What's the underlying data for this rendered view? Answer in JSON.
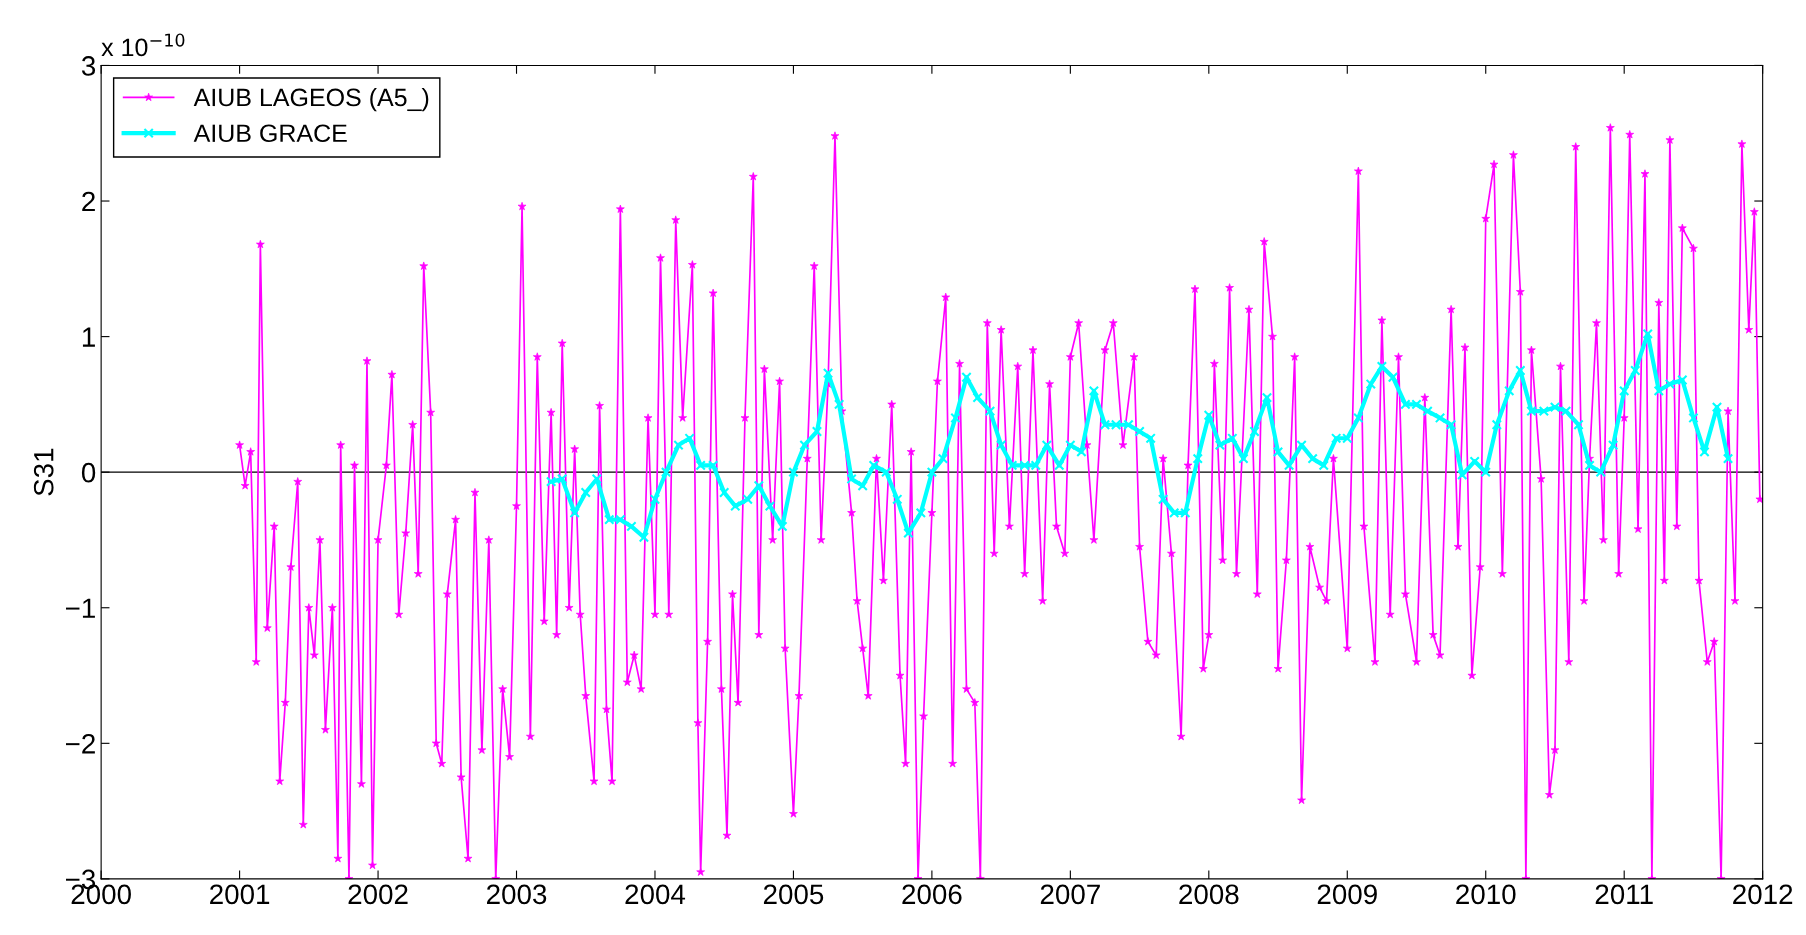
{
  "chart_data": {
    "type": "line",
    "ylabel": "S31",
    "annotations": [
      "x 10$^{−10}$"
    ],
    "xlim": [
      2000,
      2012
    ],
    "xticks": [
      2000,
      2001,
      2002,
      2003,
      2004,
      2005,
      2006,
      2007,
      2008,
      2009,
      2010,
      2011,
      2012
    ],
    "ylim": [
      -3,
      3
    ],
    "yticks": [
      {
        "value": -3,
        "label": "−3"
      },
      {
        "value": -2,
        "label": "−2"
      },
      {
        "value": -1,
        "label": "−1"
      },
      0,
      1,
      2,
      3
    ],
    "grid": false,
    "legend": "top left",
    "ref_lines": [
      {
        "axis": "y",
        "value": 0,
        "color": "#000000"
      }
    ],
    "series": [
      {
        "name": "AIUB LAGEOS (A5_)",
        "color": "#ff00ff",
        "marker": "star",
        "x": [
          2001.0,
          2001.04,
          2001.08,
          2001.12,
          2001.15,
          2001.2,
          2001.25,
          2001.29,
          2001.33,
          2001.37,
          2001.42,
          2001.46,
          2001.5,
          2001.54,
          2001.58,
          2001.62,
          2001.67,
          2001.71,
          2001.73,
          2001.79,
          2001.83,
          2001.88,
          2001.92,
          2001.96,
          2002.0,
          2002.06,
          2002.1,
          2002.15,
          2002.2,
          2002.25,
          2002.29,
          2002.33,
          2002.38,
          2002.42,
          2002.46,
          2002.5,
          2002.56,
          2002.6,
          2002.65,
          2002.7,
          2002.75,
          2002.8,
          2002.85,
          2002.9,
          2002.95,
          2003.0,
          2003.04,
          2003.1,
          2003.15,
          2003.2,
          2003.25,
          2003.29,
          2003.33,
          2003.38,
          2003.42,
          2003.46,
          2003.5,
          2003.56,
          2003.6,
          2003.65,
          2003.69,
          2003.75,
          2003.8,
          2003.85,
          2003.9,
          2003.95,
          2004.0,
          2004.04,
          2004.1,
          2004.15,
          2004.2,
          2004.27,
          2004.31,
          2004.33,
          2004.38,
          2004.42,
          2004.48,
          2004.52,
          2004.56,
          2004.6,
          2004.65,
          2004.71,
          2004.75,
          2004.79,
          2004.85,
          2004.9,
          2004.94,
          2005.0,
          2005.04,
          2005.1,
          2005.15,
          2005.2,
          2005.25,
          2005.3,
          2005.35,
          2005.42,
          2005.46,
          2005.5,
          2005.54,
          2005.6,
          2005.65,
          2005.71,
          2005.77,
          2005.81,
          2005.85,
          2005.9,
          2005.94,
          2006.0,
          2006.04,
          2006.1,
          2006.15,
          2006.2,
          2006.25,
          2006.31,
          2006.35,
          2006.4,
          2006.45,
          2006.5,
          2006.56,
          2006.62,
          2006.67,
          2006.73,
          2006.8,
          2006.85,
          2006.9,
          2006.96,
          2007.0,
          2007.06,
          2007.12,
          2007.17,
          2007.25,
          2007.31,
          2007.38,
          2007.46,
          2007.5,
          2007.56,
          2007.62,
          2007.67,
          2007.73,
          2007.8,
          2007.85,
          2007.9,
          2007.96,
          2008.0,
          2008.04,
          2008.1,
          2008.15,
          2008.2,
          2008.29,
          2008.35,
          2008.4,
          2008.46,
          2008.5,
          2008.56,
          2008.62,
          2008.67,
          2008.73,
          2008.8,
          2008.85,
          2008.9,
          2009.0,
          2009.08,
          2009.12,
          2009.2,
          2009.25,
          2009.31,
          2009.37,
          2009.42,
          2009.5,
          2009.56,
          2009.62,
          2009.67,
          2009.75,
          2009.8,
          2009.85,
          2009.9,
          2009.96,
          2010.0,
          2010.06,
          2010.12,
          2010.2,
          2010.25,
          2010.29,
          2010.33,
          2010.4,
          2010.46,
          2010.5,
          2010.54,
          2010.6,
          2010.65,
          2010.71,
          2010.75,
          2010.8,
          2010.85,
          2010.9,
          2010.96,
          2011.0,
          2011.04,
          2011.1,
          2011.15,
          2011.2,
          2011.25,
          2011.29,
          2011.33,
          2011.38,
          2011.42,
          2011.5,
          2011.54,
          2011.6,
          2011.65,
          2011.7,
          2011.75,
          2011.8,
          2011.85,
          2011.9,
          2011.94,
          2011.98
        ],
        "values": [
          0.2,
          -0.1,
          0.15,
          -1.4,
          1.68,
          -1.15,
          -0.4,
          -2.28,
          -1.7,
          -0.7,
          -0.07,
          -2.6,
          -1.0,
          -1.35,
          -0.5,
          -1.9,
          -1.0,
          -2.85,
          0.2,
          -3.0,
          0.05,
          -2.3,
          0.82,
          -2.9,
          -0.5,
          0.05,
          0.72,
          -1.05,
          -0.45,
          0.35,
          -0.75,
          1.52,
          0.44,
          -2.0,
          -2.15,
          -0.9,
          -0.35,
          -2.25,
          -2.85,
          -0.15,
          -2.05,
          -0.5,
          -3.0,
          -1.6,
          -2.1,
          -0.25,
          1.96,
          -1.95,
          0.85,
          -1.1,
          0.44,
          -1.2,
          0.95,
          -1.0,
          0.17,
          -1.05,
          -1.65,
          -2.28,
          0.49,
          -1.75,
          -2.28,
          1.94,
          -1.55,
          -1.35,
          -1.6,
          0.4,
          -1.05,
          1.58,
          -1.05,
          1.86,
          0.4,
          1.53,
          -1.85,
          -2.95,
          -1.25,
          1.32,
          -1.6,
          -2.68,
          -0.9,
          -1.7,
          0.4,
          2.18,
          -1.2,
          0.76,
          -0.5,
          0.67,
          -1.3,
          -2.52,
          -1.65,
          0.1,
          1.52,
          -0.5,
          0.65,
          2.48,
          0.45,
          -0.3,
          -0.95,
          -1.3,
          -1.65,
          0.1,
          -0.8,
          0.5,
          -1.5,
          -2.15,
          0.15,
          -3.0,
          -1.8,
          -0.3,
          0.67,
          1.29,
          -2.15,
          0.8,
          -1.6,
          -1.7,
          -3.0,
          1.1,
          -0.6,
          1.05,
          -0.4,
          0.78,
          -0.75,
          0.9,
          -0.95,
          0.65,
          -0.4,
          -0.6,
          0.85,
          1.1,
          0.2,
          -0.5,
          0.9,
          1.1,
          0.2,
          0.85,
          -0.55,
          -1.25,
          -1.35,
          0.1,
          -0.6,
          -1.95,
          0.05,
          1.35,
          -1.45,
          -1.2,
          0.8,
          -0.65,
          1.36,
          -0.75,
          1.2,
          -0.9,
          1.7,
          1.0,
          -1.45,
          -0.65,
          0.85,
          -2.42,
          -0.55,
          -0.85,
          -0.95,
          0.1,
          -1.3,
          2.22,
          -0.4,
          -1.4,
          1.12,
          -1.05,
          0.85,
          -0.9,
          -1.4,
          0.55,
          -1.2,
          -1.35,
          1.2,
          -0.55,
          0.92,
          -1.5,
          -0.7,
          1.87,
          2.27,
          -0.75,
          2.34,
          1.33,
          -3.0,
          0.9,
          -0.05,
          -2.38,
          -2.05,
          0.78,
          -1.4,
          2.4,
          -0.95,
          0.1,
          1.1,
          -0.5,
          2.54,
          -0.75,
          0.4,
          2.49,
          -0.42,
          2.2,
          -3.0,
          1.25,
          -0.8,
          2.45,
          -0.4,
          1.8,
          1.65,
          -0.8,
          -1.4,
          -1.25,
          -3.0,
          0.45,
          -0.95,
          2.42,
          1.05,
          1.92,
          -0.2
        ]
      },
      {
        "name": "AIUB GRACE",
        "color": "#00ffff",
        "marker": "cross",
        "x": [
          2003.25,
          2003.33,
          2003.42,
          2003.5,
          2003.58,
          2003.67,
          2003.75,
          2003.83,
          2003.92,
          2004.0,
          2004.08,
          2004.17,
          2004.25,
          2004.33,
          2004.42,
          2004.5,
          2004.58,
          2004.67,
          2004.75,
          2004.83,
          2004.92,
          2005.0,
          2005.08,
          2005.17,
          2005.25,
          2005.33,
          2005.42,
          2005.5,
          2005.58,
          2005.67,
          2005.75,
          2005.83,
          2005.92,
          2006.0,
          2006.08,
          2006.17,
          2006.25,
          2006.33,
          2006.42,
          2006.5,
          2006.58,
          2006.67,
          2006.75,
          2006.83,
          2006.92,
          2007.0,
          2007.08,
          2007.17,
          2007.25,
          2007.33,
          2007.42,
          2007.5,
          2007.58,
          2007.67,
          2007.75,
          2007.83,
          2007.92,
          2008.0,
          2008.08,
          2008.17,
          2008.25,
          2008.33,
          2008.42,
          2008.5,
          2008.58,
          2008.67,
          2008.75,
          2008.83,
          2008.92,
          2009.0,
          2009.08,
          2009.17,
          2009.25,
          2009.33,
          2009.42,
          2009.5,
          2009.58,
          2009.67,
          2009.75,
          2009.83,
          2009.92,
          2010.0,
          2010.08,
          2010.17,
          2010.25,
          2010.33,
          2010.42,
          2010.5,
          2010.58,
          2010.67,
          2010.75,
          2010.83,
          2010.92,
          2011.0,
          2011.08,
          2011.17,
          2011.25,
          2011.33,
          2011.42,
          2011.5,
          2011.58,
          2011.67,
          2011.75
        ],
        "values": [
          -0.07,
          -0.05,
          -0.3,
          -0.15,
          -0.05,
          -0.35,
          -0.35,
          -0.4,
          -0.48,
          -0.2,
          0.0,
          0.2,
          0.25,
          0.05,
          0.05,
          -0.15,
          -0.25,
          -0.2,
          -0.1,
          -0.25,
          -0.4,
          0.0,
          0.2,
          0.3,
          0.73,
          0.5,
          -0.05,
          -0.1,
          0.05,
          0.0,
          -0.2,
          -0.45,
          -0.3,
          0.0,
          0.1,
          0.4,
          0.7,
          0.55,
          0.45,
          0.2,
          0.05,
          0.05,
          0.05,
          0.2,
          0.05,
          0.2,
          0.15,
          0.6,
          0.35,
          0.35,
          0.35,
          0.3,
          0.25,
          -0.2,
          -0.3,
          -0.3,
          0.1,
          0.42,
          0.2,
          0.25,
          0.1,
          0.3,
          0.55,
          0.15,
          0.05,
          0.2,
          0.1,
          0.05,
          0.25,
          0.25,
          0.4,
          0.65,
          0.78,
          0.7,
          0.5,
          0.5,
          0.45,
          0.4,
          0.35,
          -0.02,
          0.08,
          0.0,
          0.35,
          0.6,
          0.75,
          0.45,
          0.45,
          0.48,
          0.45,
          0.35,
          0.05,
          0.0,
          0.2,
          0.6,
          0.75,
          1.02,
          0.6,
          0.65,
          0.68,
          0.4,
          0.15,
          0.48,
          0.1
        ]
      }
    ]
  }
}
